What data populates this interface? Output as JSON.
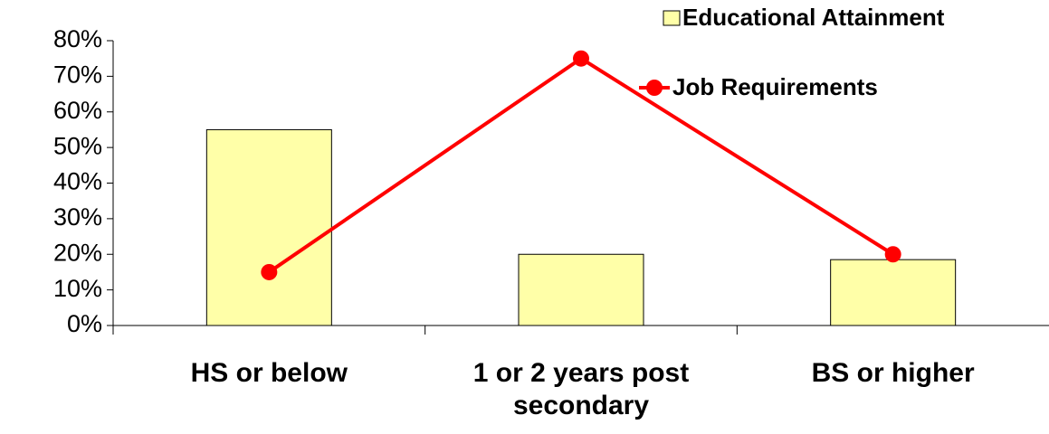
{
  "chart_data": {
    "type": "bar",
    "categories": [
      "HS or below",
      "1 or 2 years post secondary",
      "BS or higher"
    ],
    "series": [
      {
        "name": "Educational Attainment",
        "type": "bar",
        "color": "#ffffa8",
        "values": [
          55,
          20,
          18.5
        ]
      },
      {
        "name": "Job Requirements",
        "type": "line",
        "color": "#ff0000",
        "values": [
          15,
          75,
          20
        ]
      }
    ],
    "ylim": [
      0,
      80
    ],
    "yticks": [
      {
        "value": 0,
        "label": "0%"
      },
      {
        "value": 10,
        "label": "10%"
      },
      {
        "value": 20,
        "label": "20%"
      },
      {
        "value": 30,
        "label": "30%"
      },
      {
        "value": 40,
        "label": "40%"
      },
      {
        "value": 50,
        "label": "50%"
      },
      {
        "value": 60,
        "label": "60%"
      },
      {
        "value": 70,
        "label": "70%"
      },
      {
        "value": 80,
        "label": "80%"
      }
    ],
    "grid": false,
    "legend": "top-right"
  }
}
